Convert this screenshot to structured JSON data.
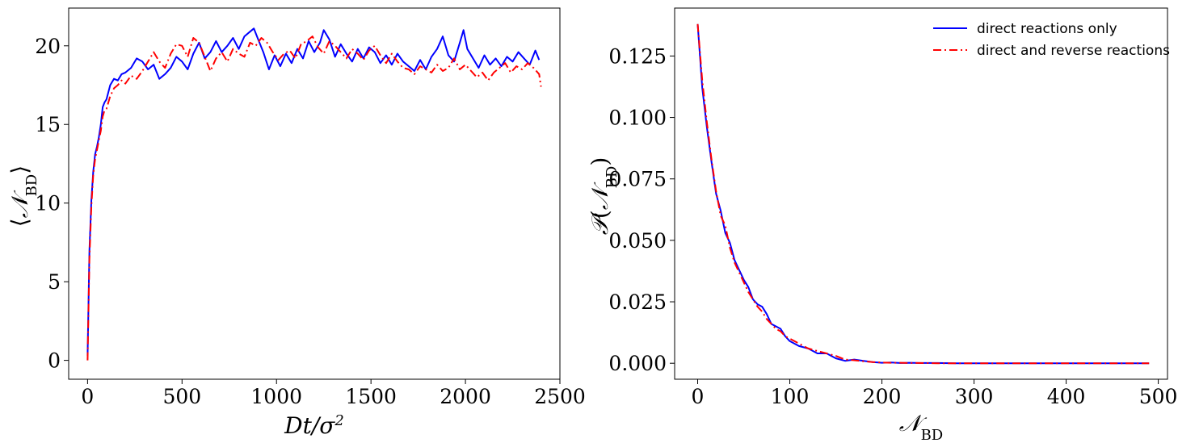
{
  "chart_data": [
    {
      "type": "line",
      "title": "",
      "xlabel": "Dt/σ²",
      "ylabel": "⟨𝒩BD⟩",
      "xlim": [
        -100,
        2500
      ],
      "ylim": [
        -1.2,
        22.4
      ],
      "xticks": [
        0,
        500,
        1000,
        1500,
        2000,
        2500
      ],
      "yticks": [
        0,
        5,
        10,
        15,
        20
      ],
      "xtick_labels": [
        "0",
        "500",
        "1000",
        "1500",
        "2000",
        "2500"
      ],
      "ytick_labels": [
        "0",
        "5",
        "10",
        "15",
        "20"
      ],
      "grid": false,
      "legend": "none",
      "series": [
        {
          "color": "#0000ff",
          "style": "solid",
          "x": [
            0,
            10,
            20,
            30,
            40,
            50,
            60,
            70,
            80,
            90,
            100,
            120,
            140,
            160,
            180,
            200,
            230,
            260,
            290,
            320,
            350,
            380,
            410,
            440,
            470,
            500,
            530,
            560,
            590,
            620,
            650,
            680,
            710,
            740,
            770,
            800,
            830,
            860,
            880,
            900,
            930,
            960,
            990,
            1020,
            1050,
            1080,
            1110,
            1140,
            1170,
            1200,
            1230,
            1250,
            1280,
            1310,
            1340,
            1370,
            1400,
            1430,
            1460,
            1490,
            1520,
            1550,
            1580,
            1610,
            1640,
            1670,
            1700,
            1730,
            1760,
            1790,
            1820,
            1850,
            1880,
            1910,
            1940,
            1970,
            1990,
            2010,
            2040,
            2070,
            2100,
            2130,
            2160,
            2190,
            2220,
            2250,
            2280,
            2310,
            2340,
            2370,
            2390
          ],
          "y": [
            0.3,
            7.0,
            10.2,
            12.0,
            13.1,
            13.6,
            14.2,
            15.0,
            16.1,
            16.4,
            16.6,
            17.5,
            17.9,
            17.8,
            18.2,
            18.3,
            18.6,
            19.2,
            19.0,
            18.5,
            18.8,
            17.9,
            18.2,
            18.6,
            19.3,
            19.0,
            18.5,
            19.5,
            20.2,
            19.2,
            19.6,
            20.3,
            19.6,
            20.0,
            20.5,
            19.8,
            20.6,
            20.9,
            21.1,
            20.5,
            19.6,
            18.5,
            19.4,
            18.7,
            19.5,
            18.9,
            19.8,
            19.2,
            20.3,
            19.6,
            20.2,
            21.0,
            20.4,
            19.3,
            20.1,
            19.5,
            19.0,
            19.8,
            19.2,
            19.9,
            19.6,
            18.9,
            19.4,
            18.8,
            19.5,
            19.0,
            18.7,
            18.4,
            19.1,
            18.5,
            19.3,
            19.8,
            20.6,
            19.4,
            19.0,
            20.2,
            21.0,
            19.8,
            19.2,
            18.6,
            19.4,
            18.8,
            19.2,
            18.7,
            19.3,
            19.0,
            19.6,
            19.2,
            18.8,
            19.7,
            19.1
          ]
        },
        {
          "color": "#ff0000",
          "style": "dashdot",
          "x": [
            0,
            10,
            20,
            30,
            40,
            50,
            60,
            70,
            80,
            90,
            100,
            120,
            140,
            160,
            180,
            200,
            230,
            260,
            290,
            320,
            350,
            380,
            410,
            440,
            470,
            500,
            530,
            560,
            590,
            620,
            650,
            680,
            710,
            740,
            770,
            800,
            830,
            860,
            890,
            920,
            950,
            980,
            1010,
            1040,
            1070,
            1100,
            1130,
            1160,
            1190,
            1220,
            1250,
            1280,
            1310,
            1340,
            1370,
            1400,
            1430,
            1460,
            1490,
            1520,
            1550,
            1580,
            1610,
            1640,
            1670,
            1700,
            1730,
            1760,
            1790,
            1820,
            1850,
            1880,
            1910,
            1940,
            1970,
            2000,
            2030,
            2060,
            2090,
            2120,
            2150,
            2180,
            2210,
            2240,
            2270,
            2300,
            2330,
            2360,
            2390,
            2400
          ],
          "y": [
            0.0,
            6.5,
            9.8,
            11.8,
            12.8,
            13.4,
            14.0,
            14.6,
            15.5,
            15.9,
            16.0,
            16.8,
            17.3,
            17.5,
            17.8,
            17.6,
            18.1,
            17.9,
            18.4,
            19.0,
            19.6,
            19.0,
            18.6,
            19.5,
            20.1,
            20.0,
            19.3,
            20.5,
            20.2,
            19.3,
            18.4,
            19.2,
            19.6,
            19.0,
            19.8,
            19.5,
            19.3,
            20.2,
            20.0,
            20.5,
            20.2,
            19.6,
            19.1,
            19.5,
            19.7,
            19.2,
            20.1,
            20.3,
            20.6,
            19.9,
            19.5,
            20.3,
            20.0,
            19.6,
            19.2,
            19.8,
            19.5,
            19.1,
            19.7,
            20.0,
            19.4,
            18.9,
            19.5,
            19.0,
            18.6,
            18.5,
            18.2,
            18.7,
            18.5,
            18.3,
            18.8,
            18.4,
            18.6,
            19.2,
            18.5,
            18.8,
            18.4,
            18.0,
            18.3,
            17.8,
            18.3,
            18.6,
            18.9,
            18.3,
            18.7,
            18.5,
            18.9,
            18.6,
            18.2,
            17.4
          ]
        }
      ]
    },
    {
      "type": "line",
      "title": "",
      "xlabel": "𝒩BD",
      "ylabel": "𝒫(𝒩BD)",
      "xlim": [
        -25,
        510
      ],
      "ylim": [
        -0.0065,
        0.1445
      ],
      "xticks": [
        0,
        100,
        200,
        300,
        400,
        500
      ],
      "yticks": [
        0.0,
        0.025,
        0.05,
        0.075,
        0.1,
        0.125
      ],
      "xtick_labels": [
        "0",
        "100",
        "200",
        "300",
        "400",
        "500"
      ],
      "ytick_labels": [
        "0.000",
        "0.025",
        "0.050",
        "0.075",
        "0.100",
        "0.125"
      ],
      "grid": false,
      "legend": "top-right",
      "series": [
        {
          "name": "direct reactions only",
          "color": "#0000ff",
          "style": "solid",
          "x": [
            0,
            5,
            10,
            15,
            20,
            25,
            30,
            35,
            40,
            45,
            50,
            55,
            60,
            65,
            70,
            75,
            80,
            85,
            90,
            95,
            100,
            110,
            120,
            130,
            140,
            150,
            160,
            170,
            180,
            190,
            200,
            210,
            220,
            230,
            240,
            260,
            280,
            300,
            350,
            400,
            450,
            490
          ],
          "y": [
            0.138,
            0.112,
            0.096,
            0.082,
            0.069,
            0.062,
            0.053,
            0.049,
            0.042,
            0.038,
            0.034,
            0.031,
            0.026,
            0.024,
            0.023,
            0.02,
            0.016,
            0.015,
            0.014,
            0.011,
            0.009,
            0.007,
            0.006,
            0.004,
            0.004,
            0.002,
            0.001,
            0.0015,
            0.001,
            0.0005,
            0.0002,
            0.0003,
            0.0001,
            0.0002,
            0.0001,
            0.0001,
            0.0,
            0.0,
            0.0,
            0.0,
            0.0,
            0.0
          ]
        },
        {
          "name": "direct and reverse reactions",
          "color": "#ff0000",
          "style": "dashdot",
          "x": [
            0,
            5,
            10,
            15,
            20,
            25,
            30,
            35,
            40,
            45,
            50,
            55,
            60,
            65,
            70,
            75,
            80,
            85,
            90,
            95,
            100,
            110,
            120,
            130,
            140,
            150,
            160,
            170,
            180,
            190,
            200,
            210,
            220,
            230,
            240,
            260,
            280,
            300,
            350,
            400,
            450,
            490
          ],
          "y": [
            0.138,
            0.115,
            0.098,
            0.083,
            0.07,
            0.06,
            0.056,
            0.047,
            0.041,
            0.037,
            0.033,
            0.029,
            0.026,
            0.023,
            0.021,
            0.018,
            0.016,
            0.014,
            0.013,
            0.011,
            0.01,
            0.008,
            0.006,
            0.005,
            0.004,
            0.003,
            0.0015,
            0.0012,
            0.0008,
            0.0005,
            0.0003,
            0.0002,
            0.0002,
            0.0001,
            0.0001,
            0.0,
            0.0,
            0.0,
            0.0,
            0.0,
            0.0,
            0.0
          ]
        }
      ]
    }
  ]
}
